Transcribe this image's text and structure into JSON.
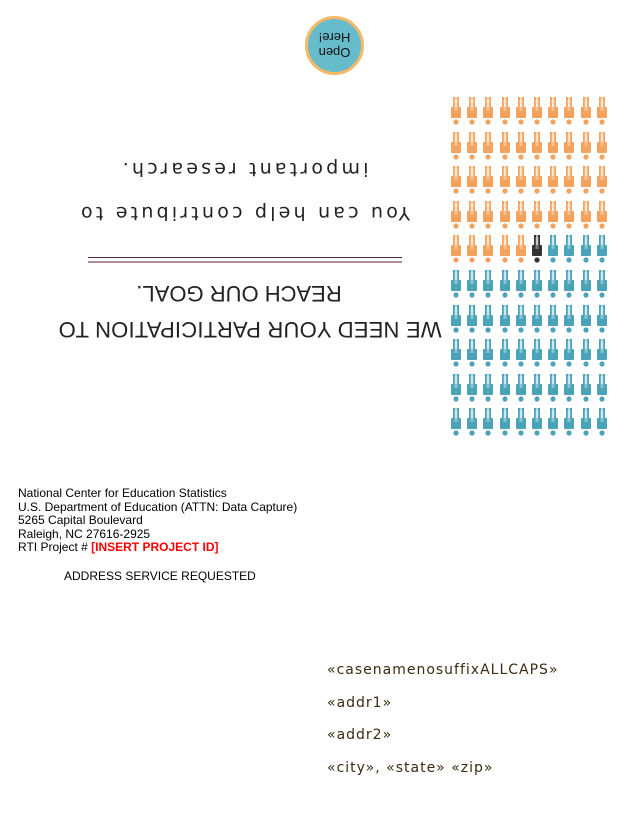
{
  "cover": {
    "open_badge": {
      "line1": "Open",
      "line2": "Here!",
      "fill": "#67bccb",
      "border": "#f7b968"
    },
    "headline": {
      "line1": "WE NEED YOUR PARTICIPATION TO",
      "line2": "REACH OUR GOAL."
    },
    "subtext": {
      "line1": "You can help contribute to",
      "line2": "important research."
    },
    "icon_grid": {
      "columns": 10,
      "rows": 10,
      "groups": [
        {
          "count": 45,
          "color": "#f5a25c"
        },
        {
          "count": 1,
          "color": "#333333"
        },
        {
          "count": 54,
          "color": "#4aa3b8"
        }
      ]
    }
  },
  "return_address": {
    "line1": "National Center for Education Statistics",
    "line2": "U.S. Department of Education (ATTN: Data Capture)",
    "line3": "5265 Capital Boulevard",
    "line4": "Raleigh, NC 27616-2925",
    "project_label": "RTI Project # ",
    "project_id": "[INSERT PROJECT ID]"
  },
  "service_note": "ADDRESS SERVICE REQUESTED",
  "recipient": {
    "name": "«casenamenosuffixALLCAPS»",
    "addr1": "«addr1»",
    "addr2": "«addr2»",
    "city_state_zip": "«city», «state»  «zip»"
  }
}
